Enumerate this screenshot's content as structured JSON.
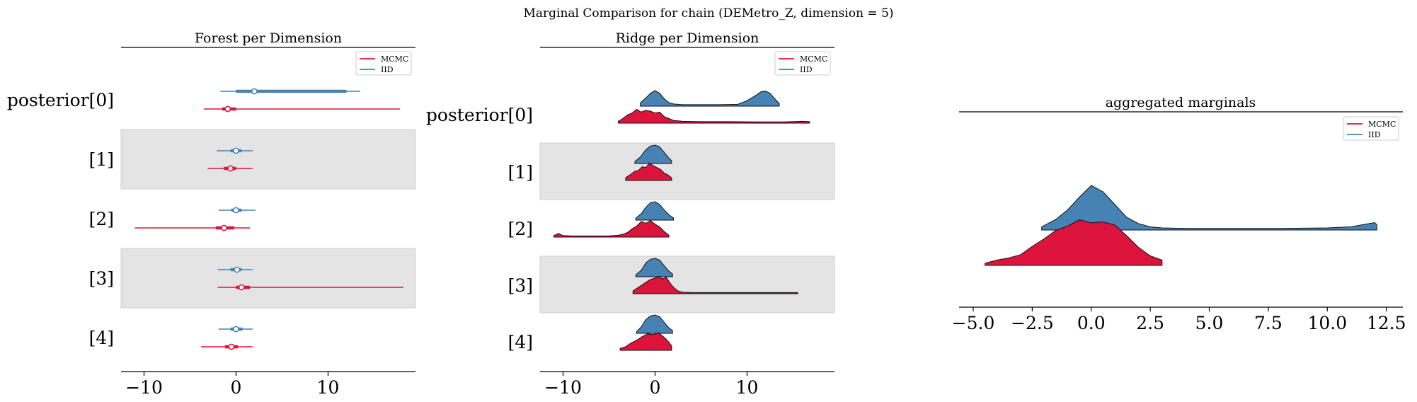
{
  "figure": {
    "suptitle": "Marginal Comparison for chain (DEMetro_Z, dimension = 5)"
  },
  "colors": {
    "mcmc": "#DC143C",
    "iid": "#4682B4",
    "band": "#E4E4E4"
  },
  "legend": {
    "entries": [
      "MCMC",
      "IID"
    ]
  },
  "chart_data": [
    {
      "type": "forest",
      "title": "Forest per Dimension",
      "xlabel": "",
      "xlim": [
        -12.5,
        19.5
      ],
      "xticks": [
        -10,
        0,
        10
      ],
      "xtick_labels": [
        "−10",
        "0",
        "10"
      ],
      "rows": [
        "posterior[0]",
        "[1]",
        "[2]",
        "[3]",
        "[4]"
      ],
      "legend_placement": "top-right",
      "series": [
        {
          "name": "IID",
          "color": "#4682B4",
          "rows": [
            {
              "range": [
                -1.7,
                13.5
              ],
              "hdi50": [
                0.0,
                12.0
              ],
              "center": 2.0
            },
            {
              "range": [
                -2.1,
                1.8
              ],
              "hdi50": [
                -0.6,
                0.6
              ],
              "center": 0.0
            },
            {
              "range": [
                -1.9,
                2.1
              ],
              "hdi50": [
                -0.5,
                0.6
              ],
              "center": 0.0
            },
            {
              "range": [
                -2.0,
                1.8
              ],
              "hdi50": [
                -0.6,
                0.6
              ],
              "center": 0.1
            },
            {
              "range": [
                -1.9,
                1.8
              ],
              "hdi50": [
                -0.6,
                0.7
              ],
              "center": 0.0
            }
          ]
        },
        {
          "name": "MCMC",
          "color": "#DC143C",
          "rows": [
            {
              "range": [
                -3.5,
                17.8
              ],
              "hdi50": [
                -1.5,
                0.0
              ],
              "center": -0.9
            },
            {
              "range": [
                -3.1,
                1.8
              ],
              "hdi50": [
                -1.3,
                0.0
              ],
              "center": -0.6
            },
            {
              "range": [
                -11.0,
                1.5
              ],
              "hdi50": [
                -2.2,
                -0.2
              ],
              "center": -1.3
            },
            {
              "range": [
                -2.0,
                18.2
              ],
              "hdi50": [
                0.0,
                1.5
              ],
              "center": 0.6
            },
            {
              "range": [
                -3.8,
                1.8
              ],
              "hdi50": [
                -1.2,
                0.2
              ],
              "center": -0.5
            }
          ]
        }
      ]
    },
    {
      "type": "ridge",
      "title": "Ridge per Dimension",
      "xlabel": "",
      "xlim": [
        -12.5,
        19.5
      ],
      "xticks": [
        -10,
        0,
        10
      ],
      "xtick_labels": [
        "−10",
        "0",
        "10"
      ],
      "rows": [
        "posterior[0]",
        "[1]",
        "[2]",
        "[3]",
        "[4]"
      ],
      "legend_placement": "top-right",
      "series": [
        {
          "name": "IID",
          "color": "#4682B4",
          "rows": [
            {
              "x": [
                -1.6,
                -1.0,
                -0.5,
                0.0,
                0.5,
                1.0,
                1.5,
                2.0,
                3.0,
                5.0,
                7.0,
                9.0,
                10.0,
                11.0,
                11.5,
                12.0,
                12.5,
                13.0,
                13.5
              ],
              "y": [
                0.18,
                0.45,
                0.7,
                0.85,
                0.7,
                0.4,
                0.2,
                0.12,
                0.08,
                0.08,
                0.08,
                0.1,
                0.3,
                0.6,
                0.78,
                0.82,
                0.7,
                0.4,
                0.15
              ]
            },
            {
              "x": [
                -2.2,
                -1.6,
                -1.0,
                -0.5,
                0.0,
                0.5,
                1.0,
                1.5,
                1.8
              ],
              "y": [
                0.1,
                0.35,
                0.75,
                0.95,
                1.0,
                0.9,
                0.6,
                0.3,
                0.15
              ]
            },
            {
              "x": [
                -2.1,
                -1.5,
                -1.0,
                -0.5,
                0.0,
                0.5,
                1.0,
                1.6,
                2.0
              ],
              "y": [
                0.1,
                0.35,
                0.7,
                0.95,
                1.0,
                0.85,
                0.55,
                0.25,
                0.12
              ]
            },
            {
              "x": [
                -2.1,
                -1.5,
                -1.0,
                -0.5,
                0.0,
                0.5,
                1.0,
                1.5,
                1.9
              ],
              "y": [
                0.1,
                0.35,
                0.75,
                0.95,
                1.0,
                0.9,
                0.6,
                0.3,
                0.15
              ]
            },
            {
              "x": [
                -2.0,
                -1.5,
                -1.0,
                -0.5,
                0.0,
                0.5,
                1.0,
                1.5,
                1.9
              ],
              "y": [
                0.1,
                0.35,
                0.75,
                0.95,
                1.0,
                0.9,
                0.6,
                0.3,
                0.15
              ]
            }
          ]
        },
        {
          "name": "MCMC",
          "color": "#DC143C",
          "rows": [
            {
              "x": [
                -4.0,
                -3.5,
                -3.0,
                -2.5,
                -2.0,
                -1.5,
                -1.0,
                -0.5,
                0.0,
                0.5,
                1.0,
                1.5,
                2.0,
                3.0,
                5.0,
                8.0,
                11.0,
                14.0,
                16.0,
                16.8
              ],
              "y": [
                0.1,
                0.25,
                0.45,
                0.55,
                0.75,
                0.6,
                0.7,
                0.65,
                0.55,
                0.6,
                0.35,
                0.25,
                0.15,
                0.1,
                0.08,
                0.08,
                0.07,
                0.07,
                0.1,
                0.08
              ]
            },
            {
              "x": [
                -3.2,
                -2.6,
                -2.2,
                -1.8,
                -1.4,
                -1.0,
                -0.6,
                -0.2,
                0.2,
                0.6,
                1.0,
                1.4,
                1.8
              ],
              "y": [
                0.15,
                0.35,
                0.5,
                0.55,
                0.75,
                0.7,
                0.95,
                0.8,
                0.7,
                0.6,
                0.4,
                0.3,
                0.15
              ]
            },
            {
              "x": [
                -11.0,
                -10.5,
                -10.0,
                -9.0,
                -7.0,
                -5.0,
                -4.0,
                -3.5,
                -3.0,
                -2.5,
                -2.0,
                -1.5,
                -1.0,
                -0.5,
                0.0,
                0.5,
                1.0,
                1.5
              ],
              "y": [
                0.08,
                0.2,
                0.08,
                0.06,
                0.06,
                0.07,
                0.1,
                0.15,
                0.25,
                0.45,
                0.6,
                0.85,
                0.75,
                0.9,
                0.7,
                0.55,
                0.3,
                0.1
              ]
            },
            {
              "x": [
                -2.4,
                -1.8,
                -1.2,
                -0.6,
                0.0,
                0.4,
                0.8,
                1.2,
                1.6,
                2.0,
                2.5,
                3.0,
                4.0,
                6.0,
                8.0,
                10.0,
                12.0,
                14.0,
                15.5
              ],
              "y": [
                0.15,
                0.35,
                0.55,
                0.75,
                0.85,
                0.95,
                0.8,
                0.9,
                0.6,
                0.35,
                0.15,
                0.08,
                0.06,
                0.06,
                0.06,
                0.06,
                0.06,
                0.06,
                0.06
              ]
            },
            {
              "x": [
                -3.8,
                -3.2,
                -2.6,
                -2.0,
                -1.4,
                -0.8,
                -0.2,
                0.4,
                1.0,
                1.4,
                1.8
              ],
              "y": [
                0.1,
                0.2,
                0.4,
                0.55,
                0.75,
                0.9,
                0.85,
                0.95,
                0.7,
                0.5,
                0.25
              ]
            }
          ]
        }
      ]
    },
    {
      "type": "area",
      "title": "aggregated marginals",
      "xlabel": "",
      "xlim": [
        -5.6,
        13.2
      ],
      "xticks": [
        -5.0,
        -2.5,
        0.0,
        2.5,
        5.0,
        7.5,
        10.0,
        12.5
      ],
      "xtick_labels": [
        "−5.0",
        "−2.5",
        "0.0",
        "2.5",
        "5.0",
        "7.5",
        "10.0",
        "12.5"
      ],
      "legend_placement": "top-right",
      "series": [
        {
          "name": "IID",
          "color": "#4682B4",
          "x": [
            -2.1,
            -1.5,
            -1.0,
            -0.5,
            0.0,
            0.5,
            1.0,
            1.5,
            2.0,
            2.5,
            3.0,
            4.0,
            6.0,
            8.0,
            10.0,
            11.0,
            11.5,
            12.0,
            12.1
          ],
          "y": [
            0.06,
            0.2,
            0.38,
            0.62,
            0.84,
            0.72,
            0.48,
            0.24,
            0.12,
            0.06,
            0.04,
            0.03,
            0.03,
            0.03,
            0.04,
            0.06,
            0.1,
            0.14,
            0.1
          ]
        },
        {
          "name": "MCMC",
          "color": "#DC143C",
          "x": [
            -4.5,
            -4.0,
            -3.5,
            -3.0,
            -2.5,
            -2.0,
            -1.5,
            -1.0,
            -0.5,
            0.0,
            0.5,
            1.0,
            1.5,
            2.0,
            2.5,
            3.0
          ],
          "y": [
            0.04,
            0.1,
            0.14,
            0.2,
            0.36,
            0.5,
            0.66,
            0.74,
            0.86,
            0.8,
            0.82,
            0.76,
            0.56,
            0.34,
            0.18,
            0.1
          ]
        }
      ]
    }
  ]
}
